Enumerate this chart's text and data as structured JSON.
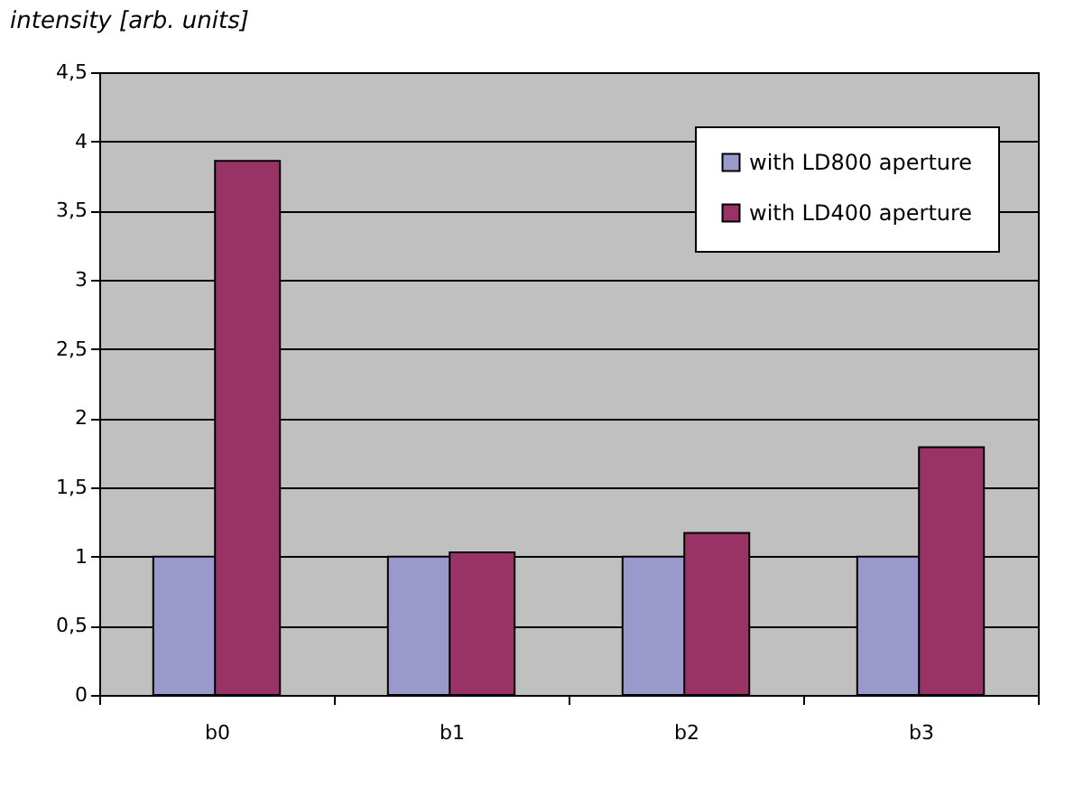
{
  "chart_data": {
    "type": "bar",
    "ylabel": "intensity [arb. units]",
    "categories": [
      "b0",
      "b1",
      "b2",
      "b3"
    ],
    "series": [
      {
        "name": "with LD800 aperture",
        "color": "#9999cc",
        "values": [
          1,
          1,
          1,
          1
        ]
      },
      {
        "name": "with LD400 aperture",
        "color": "#993366",
        "values": [
          3.86,
          1.03,
          1.17,
          1.79
        ]
      }
    ],
    "ylim": [
      0,
      4.5
    ],
    "yticks": [
      0,
      {
        "value": 0.5,
        "label": "0,5"
      },
      1,
      {
        "value": 1.5,
        "label": "1,5"
      },
      2,
      {
        "value": 2.5,
        "label": "2,5"
      },
      3,
      {
        "value": 3.5,
        "label": "3,5"
      },
      4,
      {
        "value": 4.5,
        "label": "4,5"
      }
    ],
    "grid": "y",
    "legend": "top right"
  }
}
